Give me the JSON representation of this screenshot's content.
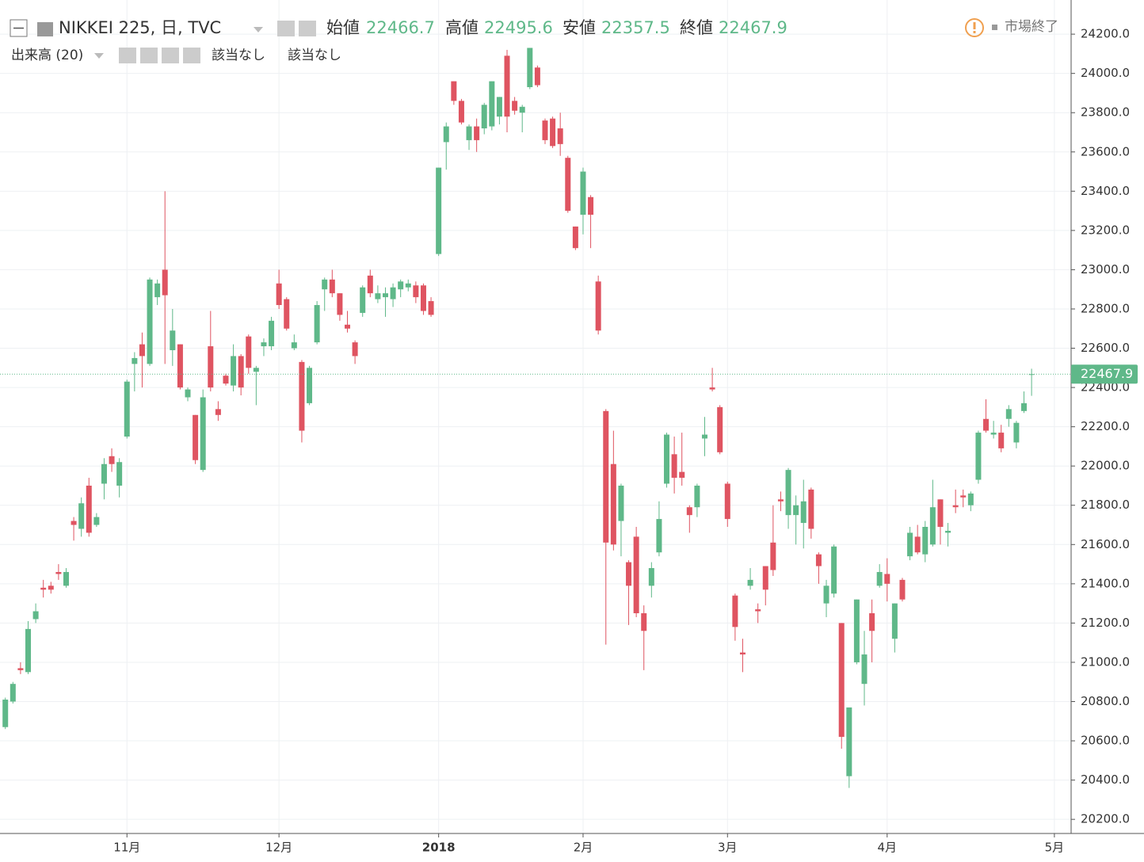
{
  "chart_data": {
    "type": "candlestick",
    "title": "NIKKEI 225, 日, TVC",
    "ohlc_labels": {
      "open": "始値",
      "high": "高値",
      "low": "安値",
      "close": "終値"
    },
    "volume_label": "出来高 (20)",
    "na_labels": [
      "該当なし",
      "該当なし"
    ],
    "status": "市場終了",
    "up_color": "#5fb889",
    "down_color": "#df5461",
    "grid": true,
    "xlim": [
      -0.7,
      140.2
    ],
    "xticks": [
      {
        "value": 16,
        "label": "11月"
      },
      {
        "value": 36,
        "label": "12月"
      },
      {
        "value": 57,
        "label": "2018"
      },
      {
        "value": 76,
        "label": "2月"
      },
      {
        "value": 95,
        "label": "3月"
      },
      {
        "value": 116,
        "label": "4月"
      },
      {
        "value": 138,
        "label": "5月"
      }
    ],
    "ylim": [
      20128,
      24374
    ],
    "yticks": [
      {
        "value": 20200,
        "label": "20200.0"
      },
      {
        "value": 20400,
        "label": "20400.0"
      },
      {
        "value": 20600,
        "label": "20600.0"
      },
      {
        "value": 20800,
        "label": "20800.0"
      },
      {
        "value": 21000,
        "label": "21000.0"
      },
      {
        "value": 21200,
        "label": "21200.0"
      },
      {
        "value": 21400,
        "label": "21400.0"
      },
      {
        "value": 21600,
        "label": "21600.0"
      },
      {
        "value": 21800,
        "label": "21800.0"
      },
      {
        "value": 22000,
        "label": "22000.0"
      },
      {
        "value": 22200,
        "label": "22200.0"
      },
      {
        "value": 22400,
        "label": "22400.0"
      },
      {
        "value": 22600,
        "label": "22600.0"
      },
      {
        "value": 22800,
        "label": "22800.0"
      },
      {
        "value": 23000,
        "label": "23000.0"
      },
      {
        "value": 23200,
        "label": "23200.0"
      },
      {
        "value": 23400,
        "label": "23400.0"
      },
      {
        "value": 23600,
        "label": "23600.0"
      },
      {
        "value": 23800,
        "label": "23800.0"
      },
      {
        "value": 24000,
        "label": "24000.0"
      },
      {
        "value": 24200,
        "label": "24200.0"
      }
    ],
    "open": [
      20670,
      20800,
      20970,
      20950,
      21220,
      21380,
      21390,
      21460,
      21390,
      21720,
      21680,
      21900,
      21700,
      21910,
      22050,
      21900,
      22150,
      22520,
      22620,
      22520,
      22860,
      23000,
      22590,
      22620,
      22350,
      22260,
      21980,
      22610,
      22290,
      22460,
      22410,
      22560,
      22660,
      22480,
      22610,
      22610,
      22930,
      22850,
      22600,
      22530,
      22320,
      22630,
      22900,
      22950,
      22880,
      22720,
      22630,
      22780,
      22970,
      22850,
      22860,
      22850,
      22900,
      22910,
      22920,
      22920,
      22840,
      23080,
      23650,
      23960,
      23860,
      23660,
      23730,
      23720,
      23730,
      23780,
      24090,
      23860,
      23800,
      23930,
      24030,
      23760,
      23770,
      23720,
      23570,
      23220,
      23280,
      23370,
      22940,
      22280,
      22010,
      21720,
      21510,
      21640,
      21250,
      21390,
      21560,
      21910,
      22060,
      21970,
      21790,
      21790,
      22140,
      22400,
      22300,
      21910,
      21340,
      21050,
      21390,
      21270,
      21490,
      21610,
      21830,
      21750,
      21750,
      21710,
      21880,
      21550,
      21300,
      21350,
      21200,
      20420,
      21000,
      20890,
      21250,
      21390,
      21450,
      21120,
      21420,
      21540,
      21640,
      21550,
      21600,
      21830,
      21660,
      21800,
      21850,
      21800,
      21930,
      22240,
      22160,
      22170,
      22240,
      22120,
      22280,
      22466.7
    ],
    "high": [
      20820,
      20900,
      21000,
      21210,
      21300,
      21420,
      21410,
      21500,
      21480,
      21740,
      21840,
      21940,
      21760,
      22040,
      22090,
      22040,
      22440,
      22580,
      22680,
      22960,
      22950,
      23400,
      22800,
      22620,
      22400,
      22260,
      22390,
      22790,
      22330,
      22470,
      22620,
      22570,
      22670,
      22510,
      22650,
      22760,
      23000,
      22860,
      22670,
      22540,
      22510,
      22840,
      22960,
      23000,
      22880,
      22790,
      22640,
      22920,
      23000,
      22920,
      22910,
      22930,
      22950,
      22950,
      22940,
      22930,
      22860,
      23520,
      23750,
      23960,
      23870,
      23740,
      23770,
      23850,
      23960,
      23880,
      24120,
      23880,
      23840,
      24130,
      24040,
      23770,
      23780,
      23800,
      23580,
      23220,
      23520,
      23380,
      22970,
      22290,
      22180,
      21910,
      21520,
      21690,
      21290,
      21510,
      21820,
      22170,
      22150,
      22170,
      21800,
      21910,
      22250,
      22500,
      22310,
      21920,
      21350,
      21120,
      21480,
      21300,
      21490,
      21800,
      21870,
      21990,
      21850,
      21930,
      21890,
      21560,
      21420,
      21600,
      21200,
      20770,
      21320,
      21160,
      21320,
      21500,
      21530,
      21300,
      21430,
      21690,
      21700,
      21720,
      21930,
      21830,
      21710,
      21880,
      21880,
      21870,
      22180,
      22340,
      22230,
      22210,
      22310,
      22230,
      22380,
      22495.6
    ],
    "low": [
      20660,
      20790,
      20940,
      20940,
      21200,
      21330,
      21350,
      21420,
      21380,
      21620,
      21640,
      21640,
      21690,
      21830,
      21970,
      21840,
      22140,
      22380,
      22400,
      22510,
      22820,
      22520,
      22510,
      22390,
      22330,
      22010,
      21970,
      22380,
      22230,
      22410,
      22380,
      22360,
      22470,
      22310,
      22560,
      22590,
      22800,
      22690,
      22590,
      22120,
      22310,
      22620,
      22790,
      22860,
      22740,
      22680,
      22520,
      22760,
      22860,
      22830,
      22760,
      22810,
      22860,
      22890,
      22830,
      22770,
      22760,
      23070,
      23510,
      23840,
      23740,
      23610,
      23600,
      23690,
      23710,
      23740,
      23700,
      23790,
      23700,
      23920,
      23930,
      23640,
      23620,
      23580,
      23290,
      23100,
      23180,
      23110,
      22670,
      21090,
      21570,
      21540,
      21190,
      21230,
      20960,
      21330,
      21540,
      21890,
      21860,
      21900,
      21660,
      21740,
      22050,
      22380,
      22060,
      21690,
      21110,
      20950,
      21370,
      21200,
      21290,
      21440,
      21770,
      21680,
      21600,
      21580,
      21630,
      21400,
      21230,
      21330,
      20560,
      20360,
      20990,
      20780,
      21000,
      21380,
      21310,
      21050,
      21310,
      21520,
      21550,
      21510,
      21590,
      21600,
      21590,
      21760,
      21790,
      21770,
      21910,
      22170,
      22140,
      22070,
      22200,
      22090,
      22270,
      22357.5
    ],
    "close": [
      20810,
      20890,
      20960,
      21170,
      21260,
      21370,
      21370,
      21450,
      21460,
      21700,
      21810,
      21660,
      21740,
      22010,
      22010,
      22020,
      22430,
      22550,
      22560,
      22950,
      22930,
      22870,
      22690,
      22400,
      22390,
      22030,
      22350,
      22400,
      22260,
      22420,
      22560,
      22400,
      22500,
      22500,
      22630,
      22740,
      22820,
      22700,
      22630,
      22180,
      22500,
      22820,
      22950,
      22880,
      22770,
      22700,
      22560,
      22910,
      22880,
      22880,
      22880,
      22910,
      22940,
      22930,
      22860,
      22790,
      22770,
      23520,
      23730,
      23860,
      23750,
      23730,
      23660,
      23840,
      23960,
      23880,
      23780,
      23810,
      23830,
      24130,
      23940,
      23660,
      23630,
      23640,
      23300,
      23110,
      23500,
      23280,
      22690,
      21610,
      21600,
      21900,
      21390,
      21250,
      21160,
      21480,
      21730,
      22160,
      21940,
      21940,
      21750,
      21900,
      22160,
      22390,
      22070,
      21730,
      21180,
      21040,
      21420,
      21260,
      21370,
      21470,
      21820,
      21980,
      21800,
      21820,
      21680,
      21490,
      21390,
      21590,
      20620,
      20770,
      21320,
      21040,
      21160,
      21460,
      21400,
      21300,
      21320,
      21660,
      21560,
      21690,
      21790,
      21690,
      21670,
      21790,
      21840,
      21860,
      22170,
      22180,
      22170,
      22090,
      22290,
      22220,
      22320,
      22467.9
    ]
  }
}
